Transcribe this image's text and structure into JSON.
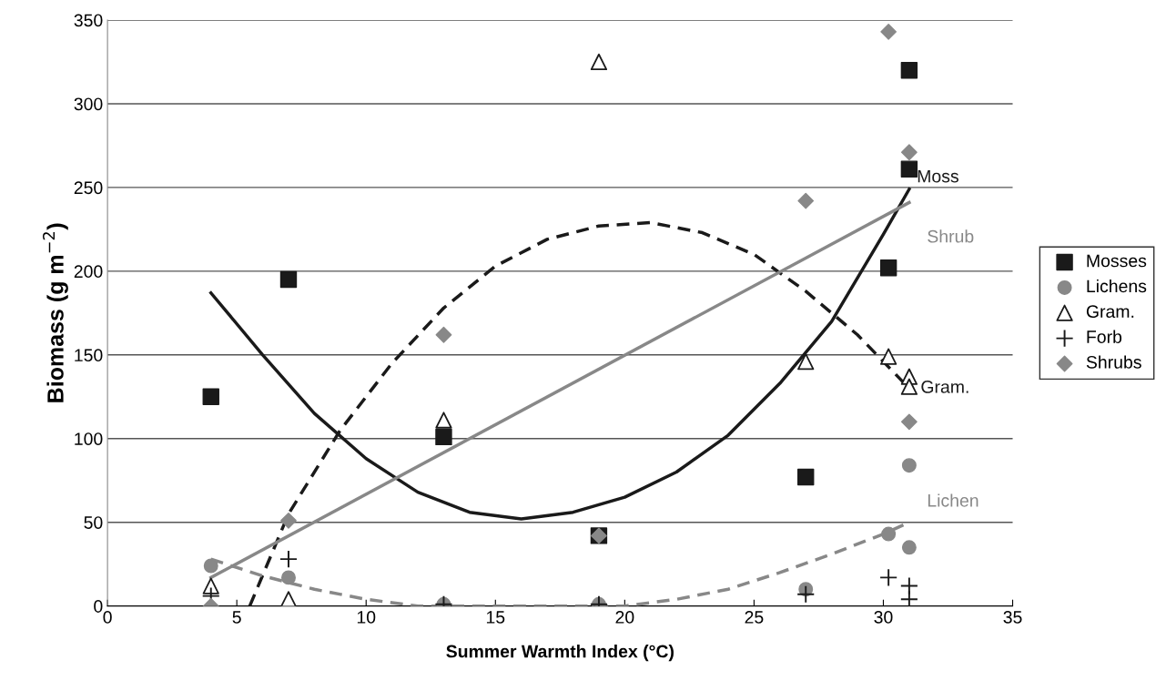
{
  "chart_data": {
    "type": "scatter",
    "xlabel": "Summer Warmth Index (°C)",
    "ylabel": "Biomass (g m$^{−2}$)",
    "xlim": [
      0,
      35
    ],
    "xticks": [
      0,
      5,
      10,
      15,
      20,
      25,
      30,
      35
    ],
    "ylim": [
      0,
      350
    ],
    "yticks": [
      0,
      50,
      100,
      150,
      200,
      250,
      300,
      350
    ],
    "grid": "y",
    "legend": "right",
    "series": [
      {
        "name": "Mosses",
        "color": "#1a1a1a",
        "marker": "square",
        "x": [
          4,
          7,
          13,
          19,
          27,
          30.2,
          31,
          31
        ],
        "values": [
          125,
          195,
          101,
          42,
          77,
          202,
          261,
          320
        ]
      },
      {
        "name": "Lichens",
        "color": "#888888",
        "marker": "circle",
        "x": [
          4,
          7,
          13,
          19,
          27,
          30.2,
          31,
          31
        ],
        "values": [
          24,
          17,
          1,
          1,
          10,
          43,
          84,
          35
        ]
      },
      {
        "name": "Gram.",
        "color": "#1a1a1a",
        "marker": "triangle",
        "x": [
          4,
          7,
          13,
          19,
          27,
          30.2,
          31,
          31
        ],
        "values": [
          12,
          4,
          111,
          325,
          146,
          149,
          137,
          131
        ]
      },
      {
        "name": "Forb",
        "color": "#1a1a1a",
        "marker": "cross",
        "x": [
          4,
          7,
          13,
          19,
          27,
          30.2,
          31,
          31
        ],
        "values": [
          6,
          28,
          1,
          1,
          7,
          17,
          12,
          4
        ]
      },
      {
        "name": "Shrubs",
        "color": "#888888",
        "marker": "diamond",
        "x": [
          4,
          7,
          13,
          19,
          27,
          30.2,
          31,
          31
        ],
        "values": [
          0,
          51,
          162,
          42,
          242,
          343,
          271,
          110
        ]
      },
      {
        "type": "line",
        "name": "Moss",
        "color": "#1a1a1a",
        "line_style": "solid",
        "x": [
          4,
          6,
          8,
          10,
          12,
          14,
          16,
          18,
          20,
          22,
          24,
          26,
          28,
          30,
          31
        ],
        "values": [
          187,
          150,
          115,
          88,
          68,
          56,
          52,
          56,
          65,
          80,
          102,
          133,
          170,
          222,
          249
        ]
      },
      {
        "type": "line",
        "color": "#1a1a1a",
        "line_style": "dashed",
        "x": [
          5.5,
          7,
          9,
          11,
          13,
          15,
          17,
          19,
          21,
          23,
          25,
          27,
          29,
          31
        ],
        "values": [
          0,
          55,
          105,
          145,
          178,
          203,
          219,
          227,
          229,
          223,
          210,
          188,
          162,
          130
        ]
      },
      {
        "type": "line",
        "name": "Shrub",
        "color": "#888888",
        "line_style": "solid",
        "x": [
          4,
          31
        ],
        "values": [
          17,
          241
        ]
      },
      {
        "type": "line",
        "name": "Lichen",
        "color": "#888888",
        "line_style": "dashed",
        "x": [
          4,
          6,
          8,
          10,
          12,
          16,
          20,
          22,
          24,
          26,
          28,
          30,
          31
        ],
        "values": [
          28,
          18,
          10,
          4,
          0,
          0,
          0,
          4,
          10,
          20,
          31,
          43,
          50
        ]
      }
    ],
    "annotations": [
      "Gram."
    ]
  }
}
